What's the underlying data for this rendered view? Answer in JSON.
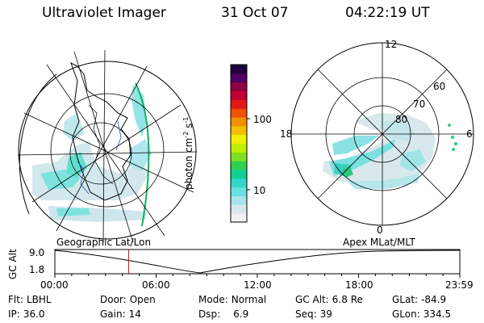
{
  "header": {
    "title": "Ultraviolet Imager",
    "date": "31 Oct 07",
    "time": "04:22:19 UT"
  },
  "colorbar": {
    "label_main": "photon cm",
    "label_sup1": "-2",
    "label_mid": "s",
    "label_sup2": "-1",
    "ticks": [
      "100",
      "10"
    ],
    "colors": [
      "#f2f2f2",
      "#d8e8ec",
      "#a8e4ec",
      "#68e0e0",
      "#30d8c8",
      "#10d090",
      "#30d050",
      "#80e020",
      "#c0f000",
      "#f0f000",
      "#f0c000",
      "#f09000",
      "#f05000",
      "#e01818",
      "#c00030",
      "#900040",
      "#500060",
      "#200040"
    ]
  },
  "maps": {
    "left_label": "Geographic Lat/Lon",
    "right_label": "Apex  MLat/MLT",
    "mlt_labels": [
      "12",
      "18",
      "6",
      "0"
    ],
    "mlat_labels": [
      "60",
      "70",
      "80"
    ]
  },
  "altitude_plot": {
    "ylabel": "GC Alt",
    "yticks": [
      "9.0",
      "1.8"
    ],
    "xticks": [
      "00:00",
      "06:00",
      "12:00",
      "18:00",
      "23:59"
    ],
    "marker_time_hours": 4.37,
    "marker_color": "#e00000"
  },
  "status": {
    "flt": {
      "label": "Flt:",
      "value": "LBHL"
    },
    "door": {
      "label": "Door:",
      "value": "Open"
    },
    "mode": {
      "label": "Mode:",
      "value": "Normal"
    },
    "gc_alt": {
      "label": "GC Alt:",
      "value": "6.8 Re"
    },
    "glat": {
      "label": "GLat:",
      "value": "-84.9"
    },
    "ip": {
      "label": "IP:",
      "value": "36.0"
    },
    "gain": {
      "label": "Gain:",
      "value": "14"
    },
    "dsp": {
      "label": "Dsp:",
      "value": "6.9"
    },
    "seq": {
      "label": "Seq:",
      "value": "39"
    },
    "glon": {
      "label": "GLon:",
      "value": "334.5"
    }
  }
}
